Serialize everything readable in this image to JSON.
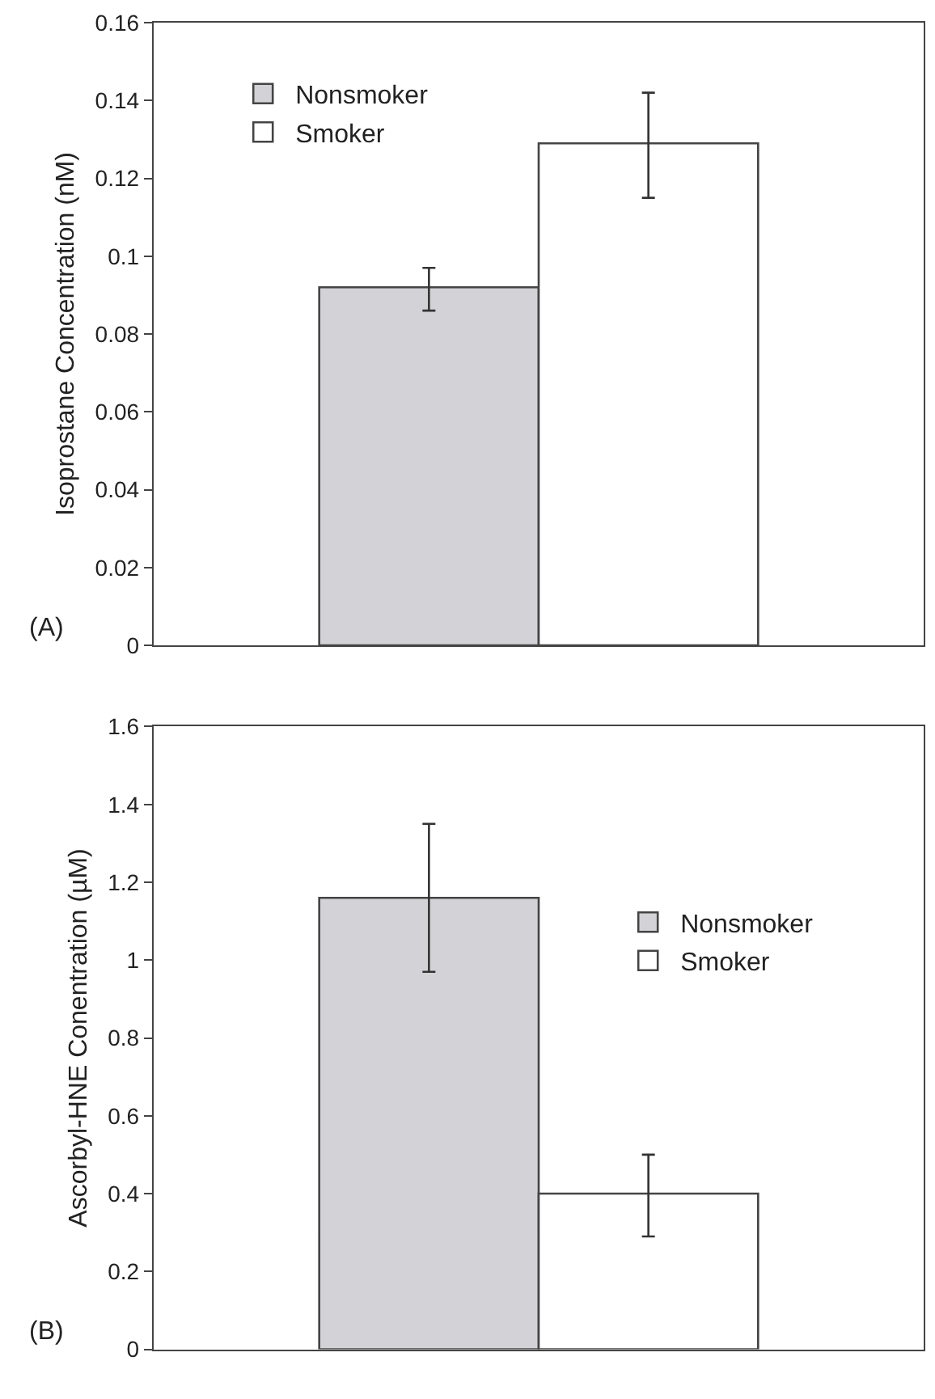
{
  "chart_data": [
    {
      "type": "bar",
      "categories": [
        null
      ],
      "ylabel": "Isoprostane Concentration (nM)",
      "annotations": [
        "(A)"
      ],
      "ylim": [
        0,
        0.16
      ],
      "yticks": [
        0,
        0.02,
        0.04,
        0.06,
        0.08,
        0.1,
        0.12,
        0.14,
        0.16
      ],
      "tick_labels": "y",
      "legend": "top left",
      "series": [
        {
          "name": "Nonsmoker",
          "color": "#d3d3d7",
          "values": [
            0.092
          ],
          "errors": [
            [
              0.086,
              0.097
            ]
          ]
        },
        {
          "name": "Smoker",
          "color": "#ffffff",
          "values": [
            0.129
          ],
          "errors": [
            [
              0.115,
              0.142
            ]
          ]
        }
      ]
    },
    {
      "type": "bar",
      "categories": [
        null
      ],
      "ylabel": "Ascorbyl-HNE Conentration (µM)",
      "annotations": [
        "(B)"
      ],
      "ylim": [
        0,
        1.6
      ],
      "yticks": [
        0,
        0.2,
        0.4,
        0.6,
        0.8,
        1,
        1.2,
        1.4,
        1.6
      ],
      "tick_labels": "y",
      "legend": "top right",
      "series": [
        {
          "name": "Nonsmoker",
          "color": "#d3d3d7",
          "values": [
            1.16
          ],
          "errors": [
            [
              0.97,
              1.35
            ]
          ]
        },
        {
          "name": "Smoker",
          "color": "#ffffff",
          "values": [
            0.4
          ],
          "errors": [
            [
              0.29,
              0.5
            ]
          ]
        }
      ]
    }
  ]
}
